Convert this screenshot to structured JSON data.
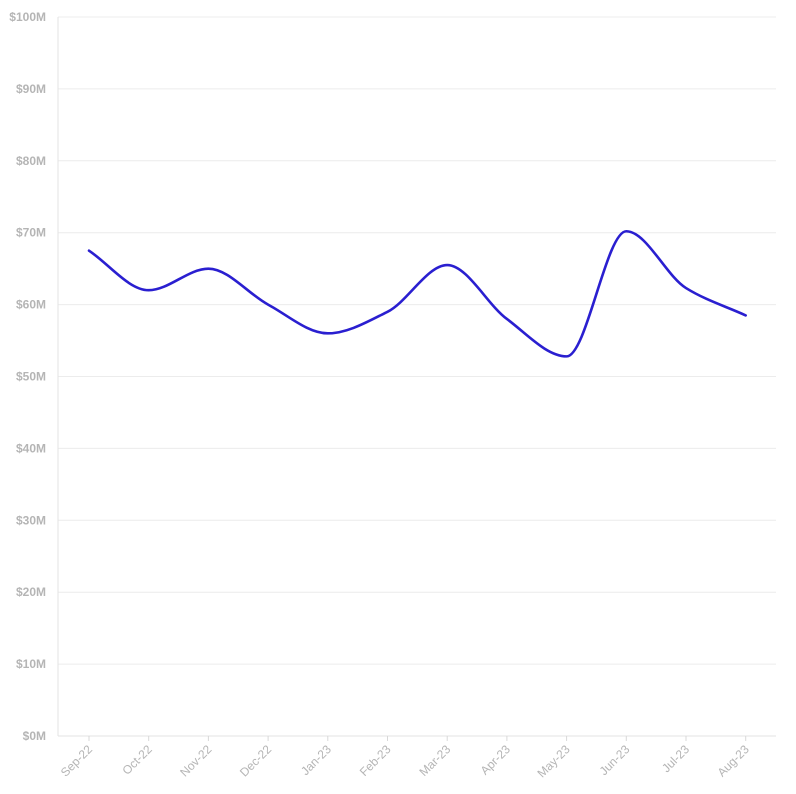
{
  "chart_data": {
    "type": "line",
    "title": "",
    "xlabel": "",
    "ylabel": "",
    "ylim": [
      0,
      100
    ],
    "y_tick_values": [
      0,
      10,
      20,
      30,
      40,
      50,
      60,
      70,
      80,
      90,
      100
    ],
    "y_tick_labels": [
      "$0M",
      "$10M",
      "$20M",
      "$30M",
      "$40M",
      "$50M",
      "$60M",
      "$70M",
      "$80M",
      "$90M",
      "$100M"
    ],
    "categories": [
      "Sep-22",
      "Oct-22",
      "Nov-22",
      "Dec-22",
      "Jan-23",
      "Feb-23",
      "Mar-23",
      "Apr-23",
      "May-23",
      "Jun-23",
      "Jul-23",
      "Aug-23"
    ],
    "series": [
      {
        "values": [
          67.5,
          62.0,
          65.0,
          60.0,
          56.0,
          59.0,
          65.5,
          58.0,
          52.8,
          70.2,
          62.3,
          58.5
        ],
        "color": "#2a1fd0"
      }
    ],
    "grid": true,
    "legend": "none"
  }
}
